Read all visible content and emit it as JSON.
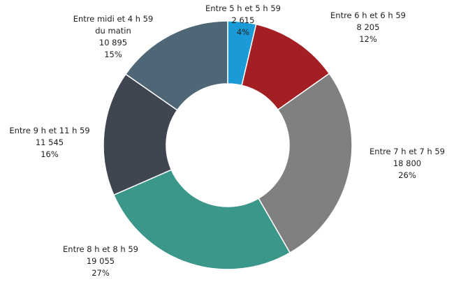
{
  "chart_data": {
    "type": "donut",
    "categories": [
      "Entre 5 h et 5 h 59",
      "Entre 6 h et 6 h 59",
      "Entre 7 h et 7 h 59",
      "Entre 8 h et 8 h 59",
      "Entre 9 h et 11 h 59",
      "Entre midi et 4 h 59 du matin"
    ],
    "values": [
      2615,
      8205,
      18800,
      19055,
      11545,
      10895
    ],
    "value_labels": [
      "2 615",
      "8 205",
      "18 800",
      "19 055",
      "11 545",
      "10 895"
    ],
    "percent_labels": [
      "4%",
      "12%",
      "26%",
      "27%",
      "16%",
      "15%"
    ],
    "colors": [
      "#1a9ad6",
      "#a31f24",
      "#808080",
      "#3a978a",
      "#3f4652",
      "#4f6677"
    ]
  }
}
